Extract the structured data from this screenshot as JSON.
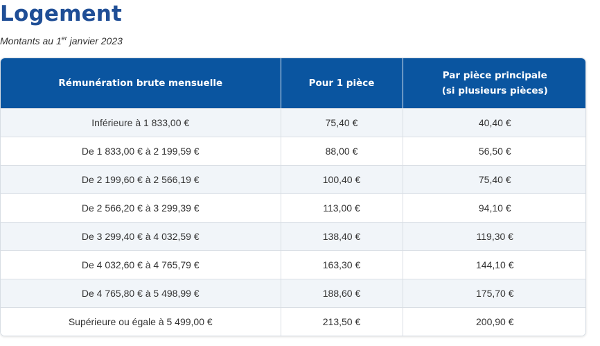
{
  "title": "Logement",
  "subtitle": {
    "prefix": "Montants au 1",
    "sup": "er",
    "suffix": " janvier 2023"
  },
  "table": {
    "headers": [
      [
        "Rémunération brute mensuelle"
      ],
      [
        "Pour 1 pièce"
      ],
      [
        "Par pièce principale",
        "(si plusieurs pièces)"
      ]
    ],
    "rows": [
      [
        "Inférieure à 1 833,00 €",
        "75,40 €",
        "40,40 €"
      ],
      [
        "De 1 833,00 € à 2 199,59 €",
        "88,00 €",
        "56,50 €"
      ],
      [
        "De 2 199,60 € à 2 566,19 €",
        "100,40 €",
        "75,40 €"
      ],
      [
        "De 2 566,20 € à 3 299,39 €",
        "113,00 €",
        "94,10 €"
      ],
      [
        "De 3 299,40 € à 4 032,59 €",
        "138,40 €",
        "119,30 €"
      ],
      [
        "De 4 032,60 € à 4 765,79 €",
        "163,30 €",
        "144,10 €"
      ],
      [
        "De 4 765,80 € à 5 498,99 €",
        "188,60 €",
        "175,70 €"
      ],
      [
        "Supérieure ou égale à 5 499,00 €",
        "213,50 €",
        "200,90 €"
      ]
    ]
  },
  "colors": {
    "title": "#1f4e96",
    "header_bg": "#0a55a0",
    "header_text": "#ffffff",
    "row_alt_bg": "#f1f5f9",
    "row_bg": "#ffffff"
  }
}
